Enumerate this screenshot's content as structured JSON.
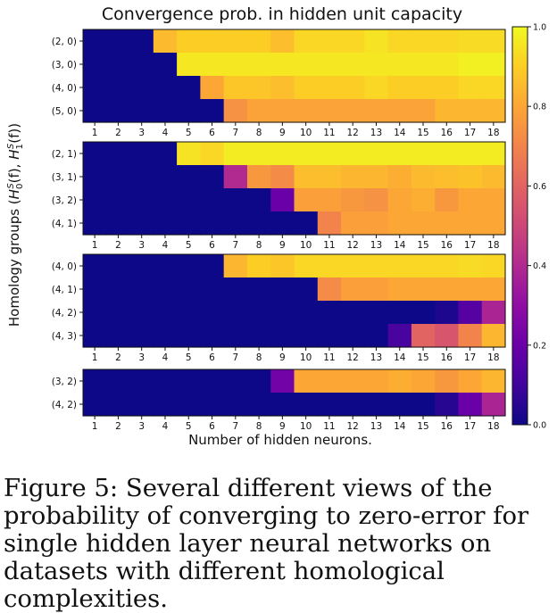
{
  "chart_data": {
    "type": "heatmap",
    "title": "Convergence prob. in hidden unit capacity",
    "xlabel": "Number of hidden neurons.",
    "ylabel": "Homology groups (H0S(f), H1S(f))",
    "ylabel_parts": {
      "start": "Homology groups (",
      "h": "H",
      "sup": "S",
      "sub0": "0",
      "sub1": "1",
      "arg": "(f)",
      "sep": ", ",
      "end": ")"
    },
    "x": [
      1,
      2,
      3,
      4,
      5,
      6,
      7,
      8,
      9,
      10,
      11,
      12,
      13,
      14,
      15,
      16,
      17,
      18
    ],
    "colorbar": {
      "colormap": "plasma",
      "range": [
        0.0,
        1.0
      ],
      "ticks": [
        "0.0",
        "0.2",
        "0.4",
        "0.6",
        "0.8",
        "1.0"
      ]
    },
    "panels": [
      {
        "rows": [
          "(2, 0)",
          "(3, 0)",
          "(4, 0)",
          "(5, 0)"
        ],
        "values": [
          [
            0,
            0,
            0,
            0.85,
            0.9,
            0.9,
            0.9,
            0.9,
            0.86,
            0.92,
            0.92,
            0.92,
            0.95,
            0.92,
            0.92,
            0.92,
            0.93,
            0.93
          ],
          [
            0,
            0,
            0,
            0,
            0.96,
            0.96,
            0.96,
            0.96,
            0.96,
            0.96,
            0.96,
            0.96,
            0.96,
            0.96,
            0.96,
            0.96,
            0.98,
            0.98
          ],
          [
            0,
            0,
            0,
            0,
            0,
            0.8,
            0.88,
            0.88,
            0.86,
            0.9,
            0.9,
            0.9,
            0.92,
            0.9,
            0.9,
            0.9,
            0.92,
            0.92
          ],
          [
            0,
            0,
            0,
            0,
            0,
            0,
            0.74,
            0.79,
            0.79,
            0.79,
            0.79,
            0.79,
            0.79,
            0.79,
            0.79,
            0.84,
            0.84,
            0.84
          ]
        ]
      },
      {
        "rows": [
          "(2, 1)",
          "(3, 1)",
          "(3, 2)",
          "(4, 1)"
        ],
        "values": [
          [
            0,
            0,
            0,
            0,
            0.95,
            0.92,
            0.97,
            0.97,
            0.97,
            0.97,
            0.97,
            0.97,
            0.97,
            0.97,
            0.97,
            0.97,
            0.97,
            0.97
          ],
          [
            0,
            0,
            0,
            0,
            0,
            0,
            0.4,
            0.76,
            0.72,
            0.86,
            0.86,
            0.84,
            0.84,
            0.82,
            0.85,
            0.86,
            0.87,
            0.85
          ],
          [
            0,
            0,
            0,
            0,
            0,
            0,
            0,
            0,
            0.2,
            0.78,
            0.78,
            0.76,
            0.74,
            0.8,
            0.82,
            0.76,
            0.8,
            0.8
          ],
          [
            0,
            0,
            0,
            0,
            0,
            0,
            0,
            0,
            0,
            0,
            0.7,
            0.78,
            0.78,
            0.8,
            0.8,
            0.8,
            0.8,
            0.8
          ]
        ]
      },
      {
        "rows": [
          "(4, 0)",
          "(4, 1)",
          "(4, 2)",
          "(4, 3)"
        ],
        "values": [
          [
            0,
            0,
            0,
            0,
            0,
            0,
            0.84,
            0.9,
            0.88,
            0.92,
            0.92,
            0.92,
            0.92,
            0.92,
            0.92,
            0.92,
            0.93,
            0.92
          ],
          [
            0,
            0,
            0,
            0,
            0,
            0,
            0,
            0,
            0,
            0,
            0.72,
            0.78,
            0.78,
            0.8,
            0.8,
            0.8,
            0.8,
            0.8
          ],
          [
            0,
            0,
            0,
            0,
            0,
            0,
            0,
            0,
            0,
            0,
            0,
            0,
            0,
            0,
            0,
            0.03,
            0.15,
            0.38
          ],
          [
            0,
            0,
            0,
            0,
            0,
            0,
            0,
            0,
            0,
            0,
            0,
            0,
            0,
            0.12,
            0.6,
            0.55,
            0.7,
            0.84
          ]
        ]
      },
      {
        "rows": [
          "(3, 2)",
          "(4, 2)"
        ],
        "values": [
          [
            0,
            0,
            0,
            0,
            0,
            0,
            0,
            0,
            0.22,
            0.8,
            0.8,
            0.8,
            0.8,
            0.82,
            0.8,
            0.76,
            0.8,
            0.84
          ],
          [
            0,
            0,
            0,
            0,
            0,
            0,
            0,
            0,
            0,
            0,
            0,
            0,
            0,
            0,
            0,
            0.05,
            0.2,
            0.38
          ]
        ]
      }
    ]
  },
  "caption": "Figure 5: Several different views of the probability of converging to zero-error for single hidden layer neural networks on datasets with different homological complexities."
}
